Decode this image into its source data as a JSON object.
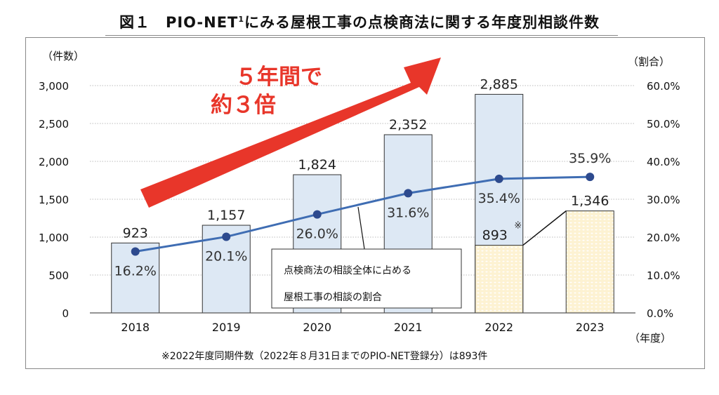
{
  "title": {
    "prefix": "図１　PIO-NET",
    "superscript": "1",
    "suffix": "にみる屋根工事の点検商法に関する年度別相談件数"
  },
  "colors": {
    "bar_fill": "#dde8f4",
    "bar_fill_partial": "#fdf2d2",
    "line": "#3f6db3",
    "marker": "#2d4a8e",
    "arrow": "#e8362a",
    "grid": "#bbbbbb"
  },
  "annotation": {
    "line1": "５年間で",
    "line2": "約３倍"
  },
  "callout": {
    "line1": "点検商法の相談全体に占める",
    "line2": "屋根工事の相談の割合"
  },
  "footnote": "※2022年度同期件数（2022年８月31日までのPIO-NET登録分）は893件",
  "chart_data": {
    "type": "bar",
    "title": "図１　PIO-NET1にみる屋根工事の点検商法に関する年度別相談件数",
    "categories": [
      "2018",
      "2019",
      "2020",
      "2021",
      "2022",
      "2023"
    ],
    "xlabel": "（年度）",
    "ylabel": "（件数）",
    "y2label": "（割合）",
    "ylim": [
      0,
      3000
    ],
    "y2lim": [
      0,
      60
    ],
    "yticks": [
      "0",
      "500",
      "1,000",
      "1,500",
      "2,000",
      "2,500",
      "3,000"
    ],
    "yticks_values": [
      0,
      500,
      1000,
      1500,
      2000,
      2500,
      3000
    ],
    "y2ticks": [
      "0.0%",
      "10.0%",
      "20.0%",
      "30.0%",
      "40.0%",
      "50.0%",
      "60.0%"
    ],
    "y2ticks_values": [
      0,
      10,
      20,
      30,
      40,
      50,
      60
    ],
    "grid": true,
    "series": [
      {
        "name": "相談件数",
        "type": "bar",
        "values": [
          923,
          1157,
          1824,
          2352,
          2885,
          1346
        ],
        "labels": [
          "923",
          "1,157",
          "1,824",
          "2,352",
          "2,885",
          "1,346"
        ]
      },
      {
        "name": "2022年度同期件数",
        "type": "bar-partial",
        "category": "2022",
        "value": 893,
        "label": "893",
        "mark": "※"
      },
      {
        "name": "点検商法の相談全体に占める屋根工事の相談の割合",
        "type": "line",
        "axis": "right",
        "values": [
          16.2,
          20.1,
          26.0,
          31.6,
          35.4,
          35.9
        ],
        "labels": [
          "16.2%",
          "20.1%",
          "26.0%",
          "31.6%",
          "35.4%",
          "35.9%"
        ]
      }
    ]
  }
}
